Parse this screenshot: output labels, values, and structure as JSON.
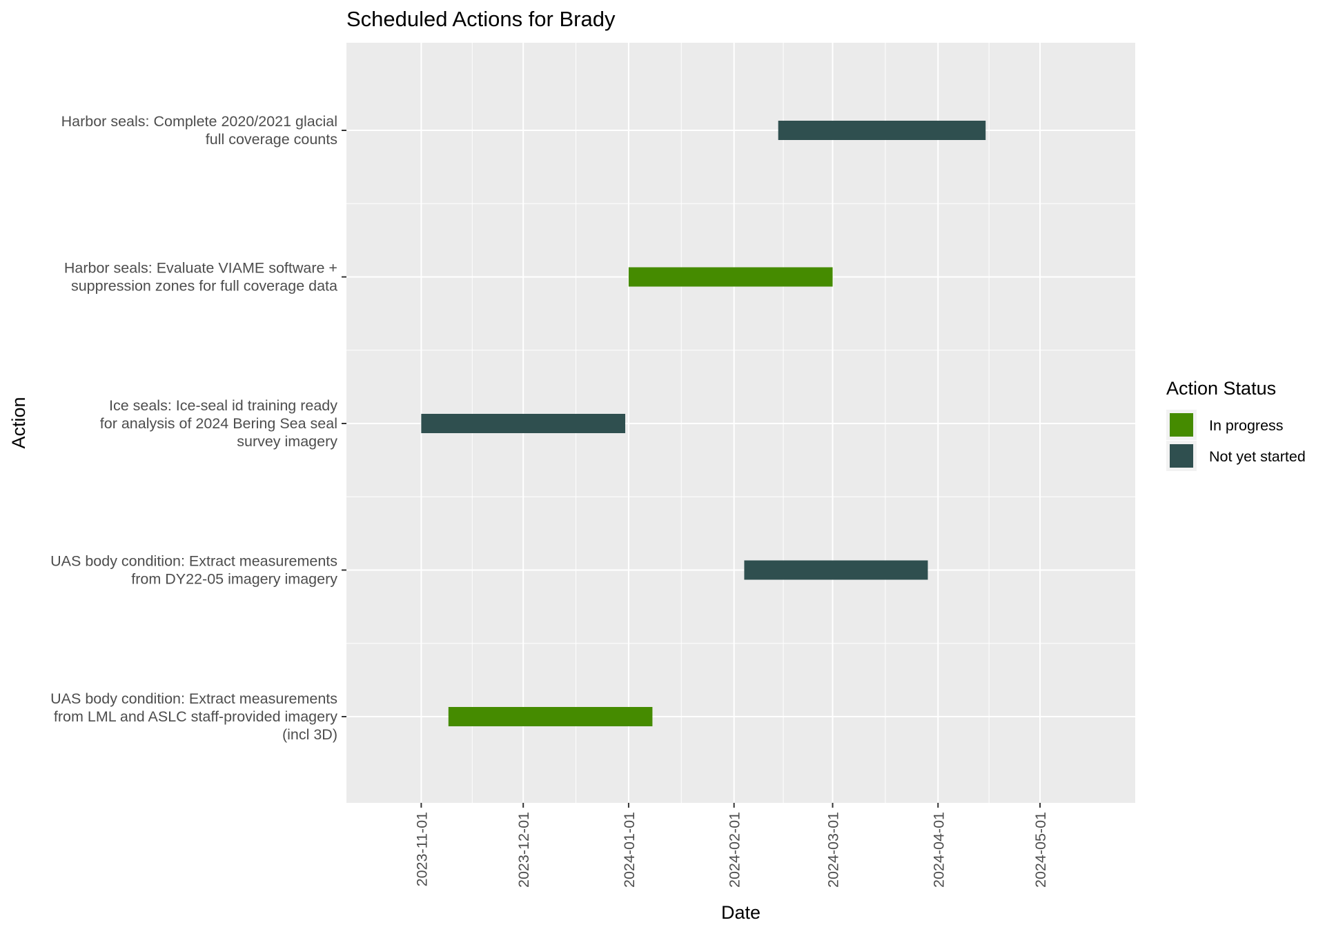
{
  "chart_data": {
    "type": "gantt",
    "title": "Scheduled Actions for Brady",
    "xlabel": "Date",
    "ylabel": "Action",
    "x_ticks": [
      "2023-11-01",
      "2023-12-01",
      "2024-01-01",
      "2024-02-01",
      "2024-03-01",
      "2024-04-01",
      "2024-05-01"
    ],
    "x_range": [
      "2023-10-10",
      "2024-05-29"
    ],
    "grid": true,
    "legend": {
      "title": "Action Status",
      "position": "right",
      "items": [
        {
          "label": "In progress",
          "color": "#458b00"
        },
        {
          "label": "Not yet started",
          "color": "#2f4f4f"
        }
      ]
    },
    "tasks": [
      {
        "action": "Harbor seals: Complete 2020/2021 glacial\nfull coverage counts",
        "start": "2024-02-14",
        "end": "2024-04-15",
        "status": "Not yet started"
      },
      {
        "action": "Harbor seals: Evaluate VIAME software +\nsuppression zones for full coverage data",
        "start": "2024-01-01",
        "end": "2024-03-01",
        "status": "In progress"
      },
      {
        "action": "Ice seals: Ice-seal id training ready\nfor analysis of 2024 Bering Sea seal\nsurvey imagery",
        "start": "2023-11-01",
        "end": "2023-12-31",
        "status": "Not yet started"
      },
      {
        "action": "UAS body condition: Extract measurements\nfrom DY22-05 imagery imagery",
        "start": "2024-02-04",
        "end": "2024-03-29",
        "status": "Not yet started"
      },
      {
        "action": "UAS body condition: Extract measurements\nfrom LML and ASLC staff-provided imagery\n(incl 3D)",
        "start": "2023-11-09",
        "end": "2024-01-08",
        "status": "In progress"
      }
    ]
  }
}
